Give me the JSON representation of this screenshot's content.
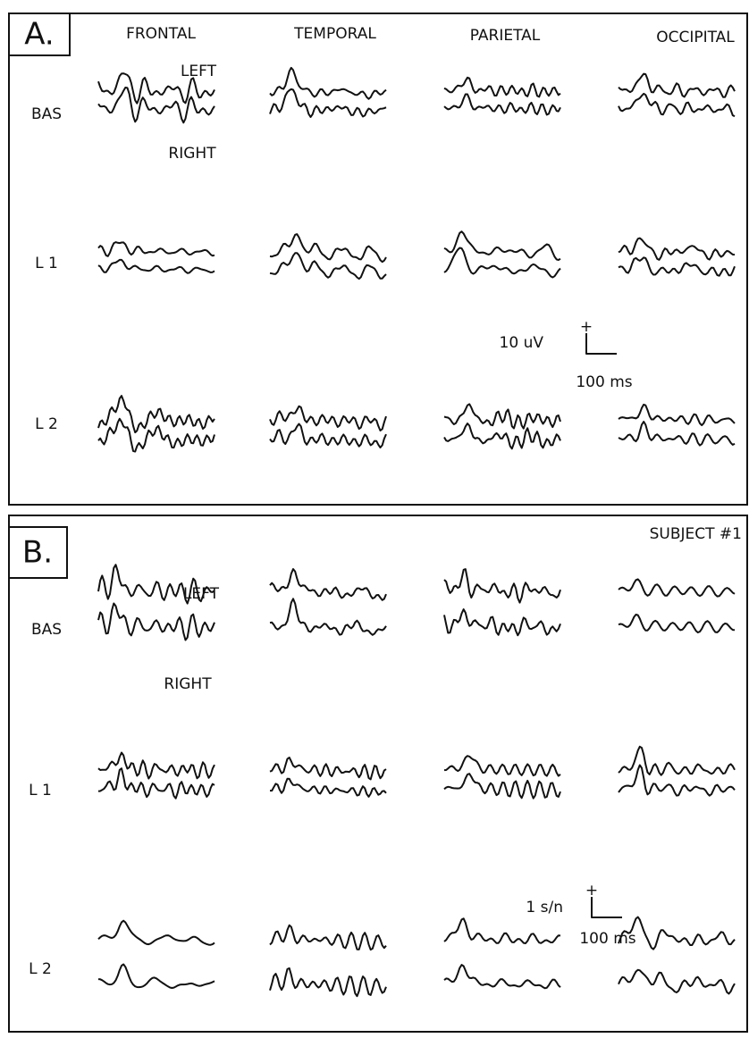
{
  "panels": [
    {
      "label": "A.",
      "columns": [
        "FRONTAL",
        "TEMPORAL",
        "PARIETAL",
        "OCCIPITAL"
      ],
      "rows": [
        "BAS",
        "L 1",
        "L 2"
      ],
      "trace_labels": [
        "LEFT",
        "RIGHT"
      ],
      "scale": {
        "amplitude": "10 uV",
        "polarity": "+",
        "time": "100 ms"
      }
    },
    {
      "label": "B.",
      "rows": [
        "BAS",
        "L 1",
        "L 2"
      ],
      "trace_labels": [
        "LEFT",
        "RIGHT"
      ],
      "scale": {
        "amplitude": "1 s/n",
        "polarity": "+",
        "time": "100 ms"
      }
    }
  ],
  "subject": "SUBJECT #1"
}
